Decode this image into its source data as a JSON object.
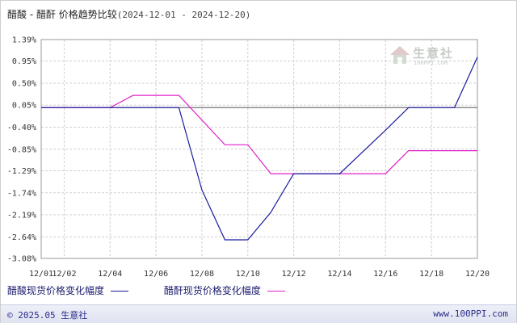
{
  "title": {
    "main": "醋酸 - 醋酐 价格趋势比较",
    "range": "(2024-12-01 - 2024-12-20)"
  },
  "watermark": {
    "name": "生意社",
    "url": "100PPI.COM"
  },
  "footer": {
    "copyright": "© 2025.05 生意社",
    "site": "www.100PPI.com"
  },
  "colors": {
    "series1": "#1a1aa0",
    "series2": "#e020c8",
    "grid": "#d0d0d0",
    "zero_line": "#555555"
  },
  "chart_data": {
    "type": "line",
    "title": "醋酸 - 醋酐 价格趋势比较",
    "subtitle": "(2024-12-01 - 2024-12-20)",
    "xlabel": "",
    "ylabel": "",
    "x_tick_labels": [
      "12/01",
      "12/02",
      "12/04",
      "12/06",
      "12/08",
      "12/10",
      "12/12",
      "12/14",
      "12/16",
      "12/18",
      "12/20"
    ],
    "y_tick_labels": [
      "1.39%",
      "0.95%",
      "0.50%",
      "0.05%",
      "-0.40%",
      "-0.85%",
      "-1.29%",
      "-1.74%",
      "-2.19%",
      "-2.64%",
      "-3.08%"
    ],
    "y_ticks": [
      1.39,
      0.95,
      0.5,
      0.05,
      -0.4,
      -0.85,
      -1.29,
      -1.74,
      -2.19,
      -2.64,
      -3.08
    ],
    "ylim": [
      -3.08,
      1.39
    ],
    "grid": true,
    "legend_position": "bottom",
    "series": [
      {
        "name": "醋酸现货价格变化幅度",
        "color": "#1a1aa0",
        "points": [
          [
            "12/01",
            0.0
          ],
          [
            "12/02",
            0.0
          ],
          [
            "12/04",
            0.0
          ],
          [
            "12/06",
            0.0
          ],
          [
            "12/07",
            0.0
          ],
          [
            "12/08",
            -1.68
          ],
          [
            "12/09",
            -2.7
          ],
          [
            "12/10",
            -2.7
          ],
          [
            "12/11",
            -2.14
          ],
          [
            "12/12",
            -1.35
          ],
          [
            "12/13",
            -1.35
          ],
          [
            "12/14",
            -1.35
          ],
          [
            "12/16",
            -0.46
          ],
          [
            "12/17",
            0.0
          ],
          [
            "12/18",
            0.0
          ],
          [
            "12/19",
            0.0
          ],
          [
            "12/20",
            1.03
          ]
        ]
      },
      {
        "name": "醋酐现货价格变化幅度",
        "color": "#e020c8",
        "points": [
          [
            "12/01",
            0.0
          ],
          [
            "12/02",
            0.0
          ],
          [
            "12/04",
            0.0
          ],
          [
            "12/05",
            0.25
          ],
          [
            "12/06",
            0.25
          ],
          [
            "12/07",
            0.25
          ],
          [
            "12/09",
            -0.76
          ],
          [
            "12/10",
            -0.76
          ],
          [
            "12/11",
            -1.35
          ],
          [
            "12/12",
            -1.35
          ],
          [
            "12/14",
            -1.35
          ],
          [
            "12/15",
            -1.35
          ],
          [
            "12/16",
            -1.35
          ],
          [
            "12/17",
            -0.88
          ],
          [
            "12/18",
            -0.88
          ],
          [
            "12/19",
            -0.88
          ],
          [
            "12/20",
            -0.88
          ]
        ]
      }
    ]
  }
}
